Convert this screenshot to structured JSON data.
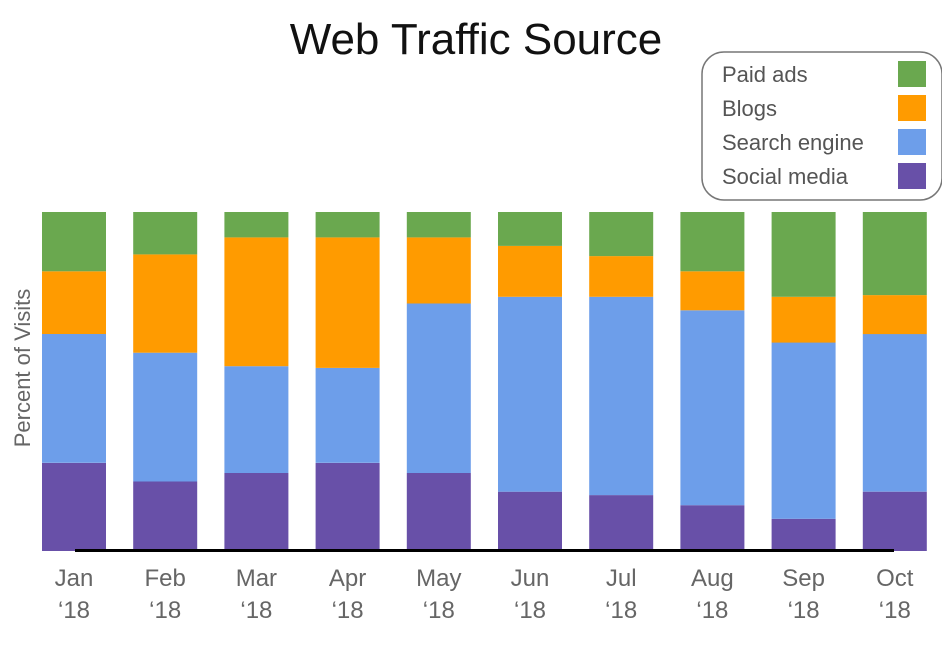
{
  "chart_data": {
    "type": "bar",
    "stacked": true,
    "title": "Web Traffic Source",
    "xlabel": "",
    "ylabel": "Percent of Visits",
    "categories": [
      [
        "Jan",
        "‘18"
      ],
      [
        "Feb",
        "‘18"
      ],
      [
        "Mar",
        "‘18"
      ],
      [
        "Apr",
        "‘18"
      ],
      [
        "May",
        "‘18"
      ],
      [
        "Jun",
        "‘18"
      ],
      [
        "Jul",
        "‘18"
      ],
      [
        "Aug",
        "‘18"
      ],
      [
        "Sep",
        "‘18"
      ],
      [
        "Oct",
        "‘18"
      ]
    ],
    "ylim": [
      0,
      100
    ],
    "grid": false,
    "legend_position": "top-right",
    "series": [
      {
        "name": "Social media",
        "color": "#6850a8",
        "values": [
          26,
          20.5,
          23,
          26,
          23,
          17.5,
          16.5,
          13.5,
          9.5,
          17.5
        ]
      },
      {
        "name": "Search engine",
        "color": "#6d9eea",
        "values": [
          38,
          38,
          31.5,
          28,
          50,
          57.5,
          58.5,
          57.5,
          52,
          46.5
        ]
      },
      {
        "name": "Blogs",
        "color": "#ff9b00",
        "values": [
          18.5,
          29,
          38,
          38.5,
          19.5,
          15,
          12,
          11.5,
          13.5,
          11.5
        ]
      },
      {
        "name": "Paid ads",
        "color": "#6aa84f",
        "values": [
          17.5,
          12.5,
          7.5,
          7.5,
          7.5,
          10,
          13,
          17.5,
          25,
          24.5
        ]
      }
    ],
    "legend_order": [
      "Paid ads",
      "Blogs",
      "Search engine",
      "Social media"
    ]
  }
}
